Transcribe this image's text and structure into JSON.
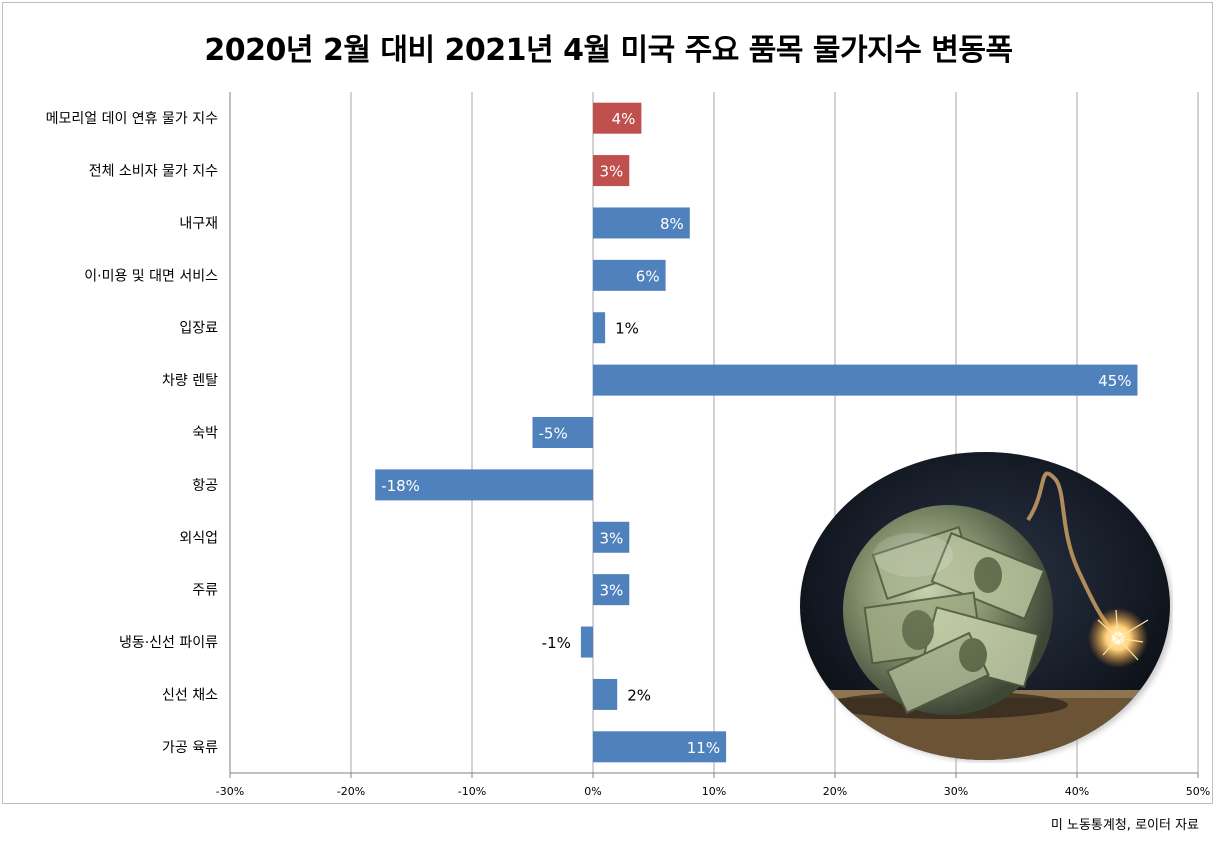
{
  "source": "미 노동통계청, 로이터 자료",
  "colors": {
    "highlight": "#c0504d",
    "bar": "#4f81bd",
    "grid": "#a6a6a6",
    "axis": "#808080"
  },
  "chart_data": {
    "type": "bar",
    "orientation": "horizontal",
    "title": "2020년 2월 대비 2021년 4월 미국 주요 품목 물가지수 변동폭",
    "categories": [
      "메모리얼 데이 연휴 물가 지수",
      "전체 소비자 물가 지수",
      "내구재",
      "이·미용 및 대면 서비스",
      "입장료",
      "차량 렌탈",
      "숙박",
      "항공",
      "외식업",
      "주류",
      "냉동·신선 파이류",
      "신선 채소",
      "가공 육류"
    ],
    "values": [
      4,
      3,
      8,
      6,
      1,
      45,
      -5,
      -18,
      3,
      3,
      -1,
      2,
      11
    ],
    "value_labels": [
      "4%",
      "3%",
      "8%",
      "6%",
      "1%",
      "45%",
      "-5%",
      "-18%",
      "3%",
      "3%",
      "-1%",
      "2%",
      "11%"
    ],
    "highlight_categories": [
      "메모리얼 데이 연휴 물가 지수",
      "전체 소비자 물가 지수"
    ],
    "xlim": [
      -30,
      50
    ],
    "xticks": [
      -30,
      -20,
      -10,
      0,
      10,
      20,
      30,
      40,
      50
    ],
    "xtick_labels": [
      "-30%",
      "-20%",
      "-10%",
      "0%",
      "10%",
      "20%",
      "30%",
      "40%",
      "50%"
    ],
    "grid": "vertical",
    "legend": "none"
  }
}
